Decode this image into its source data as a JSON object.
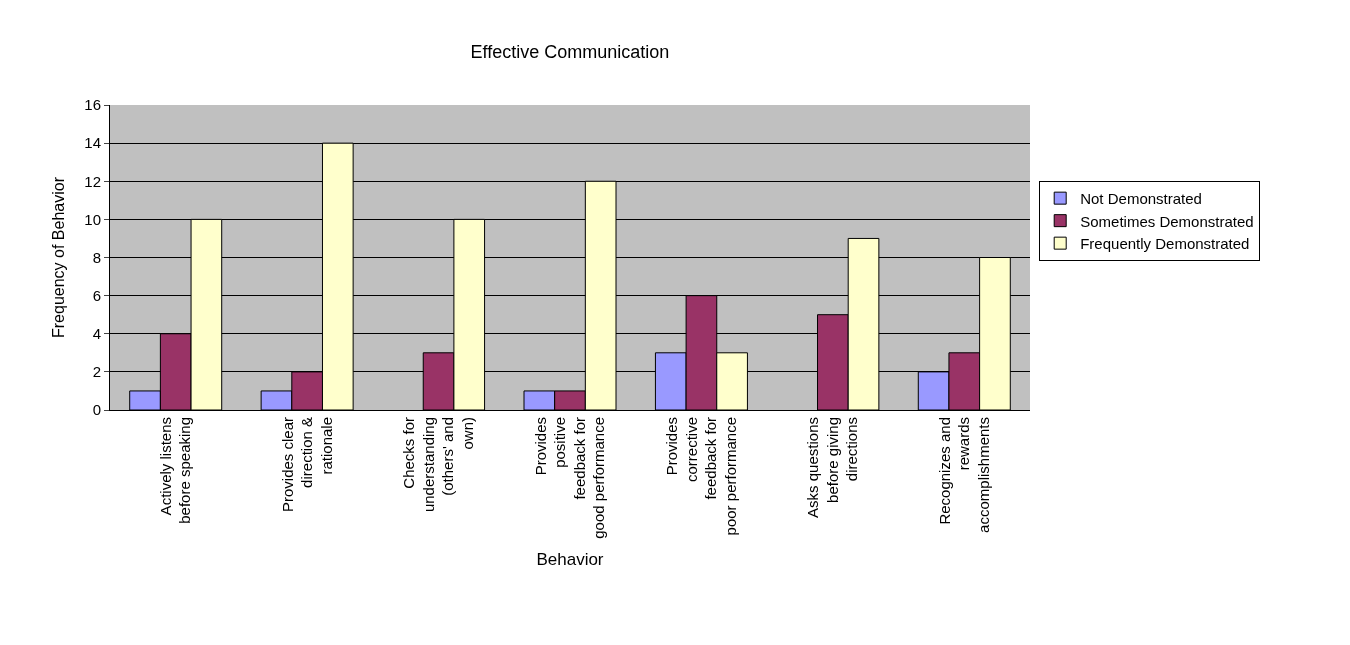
{
  "chart_data": {
    "type": "bar",
    "title": "Effective Communication",
    "xlabel": "Behavior",
    "ylabel": "Frequency of Behavior",
    "categories": [
      "Actively listens before speaking",
      "Provides clear direction & rationale",
      "Checks for understanding (others' and own)",
      "Provides positive feedback for good performance",
      "Provides corrective feedback for poor performance",
      "Asks questions before giving directions",
      "Recognizes and rewards accomplishments"
    ],
    "series": [
      {
        "name": "Not Demonstrated",
        "color": "#9999ff",
        "values": [
          1,
          1,
          null,
          1,
          3,
          null,
          2
        ]
      },
      {
        "name": "Sometimes Demonstrated",
        "color": "#993366",
        "values": [
          4,
          2,
          3,
          1,
          6,
          5,
          3
        ]
      },
      {
        "name": "Frequently Demonstrated",
        "color": "#ffffcc",
        "values": [
          10,
          14,
          10,
          12,
          3,
          9,
          8
        ]
      }
    ],
    "ylim": [
      0,
      16
    ],
    "yticks": [
      0,
      2,
      4,
      6,
      8,
      10,
      12,
      14,
      16
    ],
    "grid": "y",
    "legend": "right"
  }
}
